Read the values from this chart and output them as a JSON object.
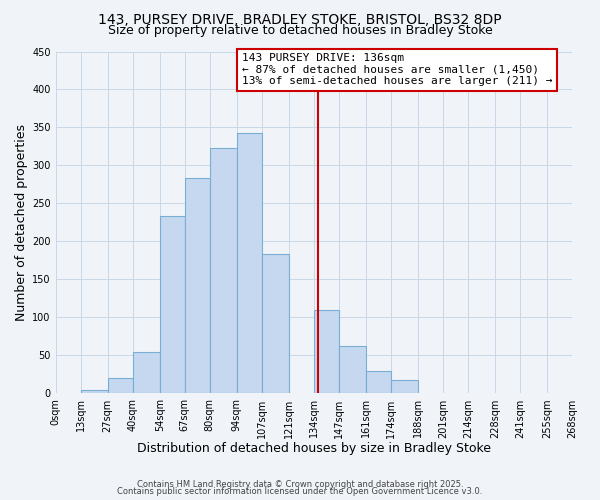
{
  "title": "143, PURSEY DRIVE, BRADLEY STOKE, BRISTOL, BS32 8DP",
  "subtitle": "Size of property relative to detached houses in Bradley Stoke",
  "xlabel": "Distribution of detached houses by size in Bradley Stoke",
  "ylabel": "Number of detached properties",
  "bin_edges": [
    0,
    13,
    27,
    40,
    54,
    67,
    80,
    94,
    107,
    121,
    134,
    147,
    161,
    174,
    188,
    201,
    214,
    228,
    241,
    255,
    268
  ],
  "bin_labels": [
    "0sqm",
    "13sqm",
    "27sqm",
    "40sqm",
    "54sqm",
    "67sqm",
    "80sqm",
    "94sqm",
    "107sqm",
    "121sqm",
    "134sqm",
    "147sqm",
    "161sqm",
    "174sqm",
    "188sqm",
    "201sqm",
    "214sqm",
    "228sqm",
    "241sqm",
    "255sqm",
    "268sqm"
  ],
  "bar_heights": [
    0,
    5,
    20,
    55,
    233,
    284,
    323,
    343,
    184,
    0,
    110,
    63,
    30,
    18,
    0,
    0,
    0,
    0,
    0,
    0
  ],
  "bar_color": "#c5d8f0",
  "bar_edge_color": "#7aadd4",
  "vline_x": 136,
  "vline_color": "#cc0000",
  "annotation_line1": "143 PURSEY DRIVE: 136sqm",
  "annotation_line2": "← 87% of detached houses are smaller (1,450)",
  "annotation_line3": "13% of semi-detached houses are larger (211) →",
  "annotation_box_color": "#cc0000",
  "ylim": [
    0,
    450
  ],
  "yticks": [
    0,
    50,
    100,
    150,
    200,
    250,
    300,
    350,
    400,
    450
  ],
  "grid_color": "#c8d8e8",
  "background_color": "#f0f4f8",
  "footer_line1": "Contains HM Land Registry data © Crown copyright and database right 2025.",
  "footer_line2": "Contains public sector information licensed under the Open Government Licence v3.0.",
  "title_fontsize": 10,
  "subtitle_fontsize": 9,
  "axis_label_fontsize": 9,
  "tick_fontsize": 7,
  "annotation_fontsize": 8,
  "footer_fontsize": 6
}
